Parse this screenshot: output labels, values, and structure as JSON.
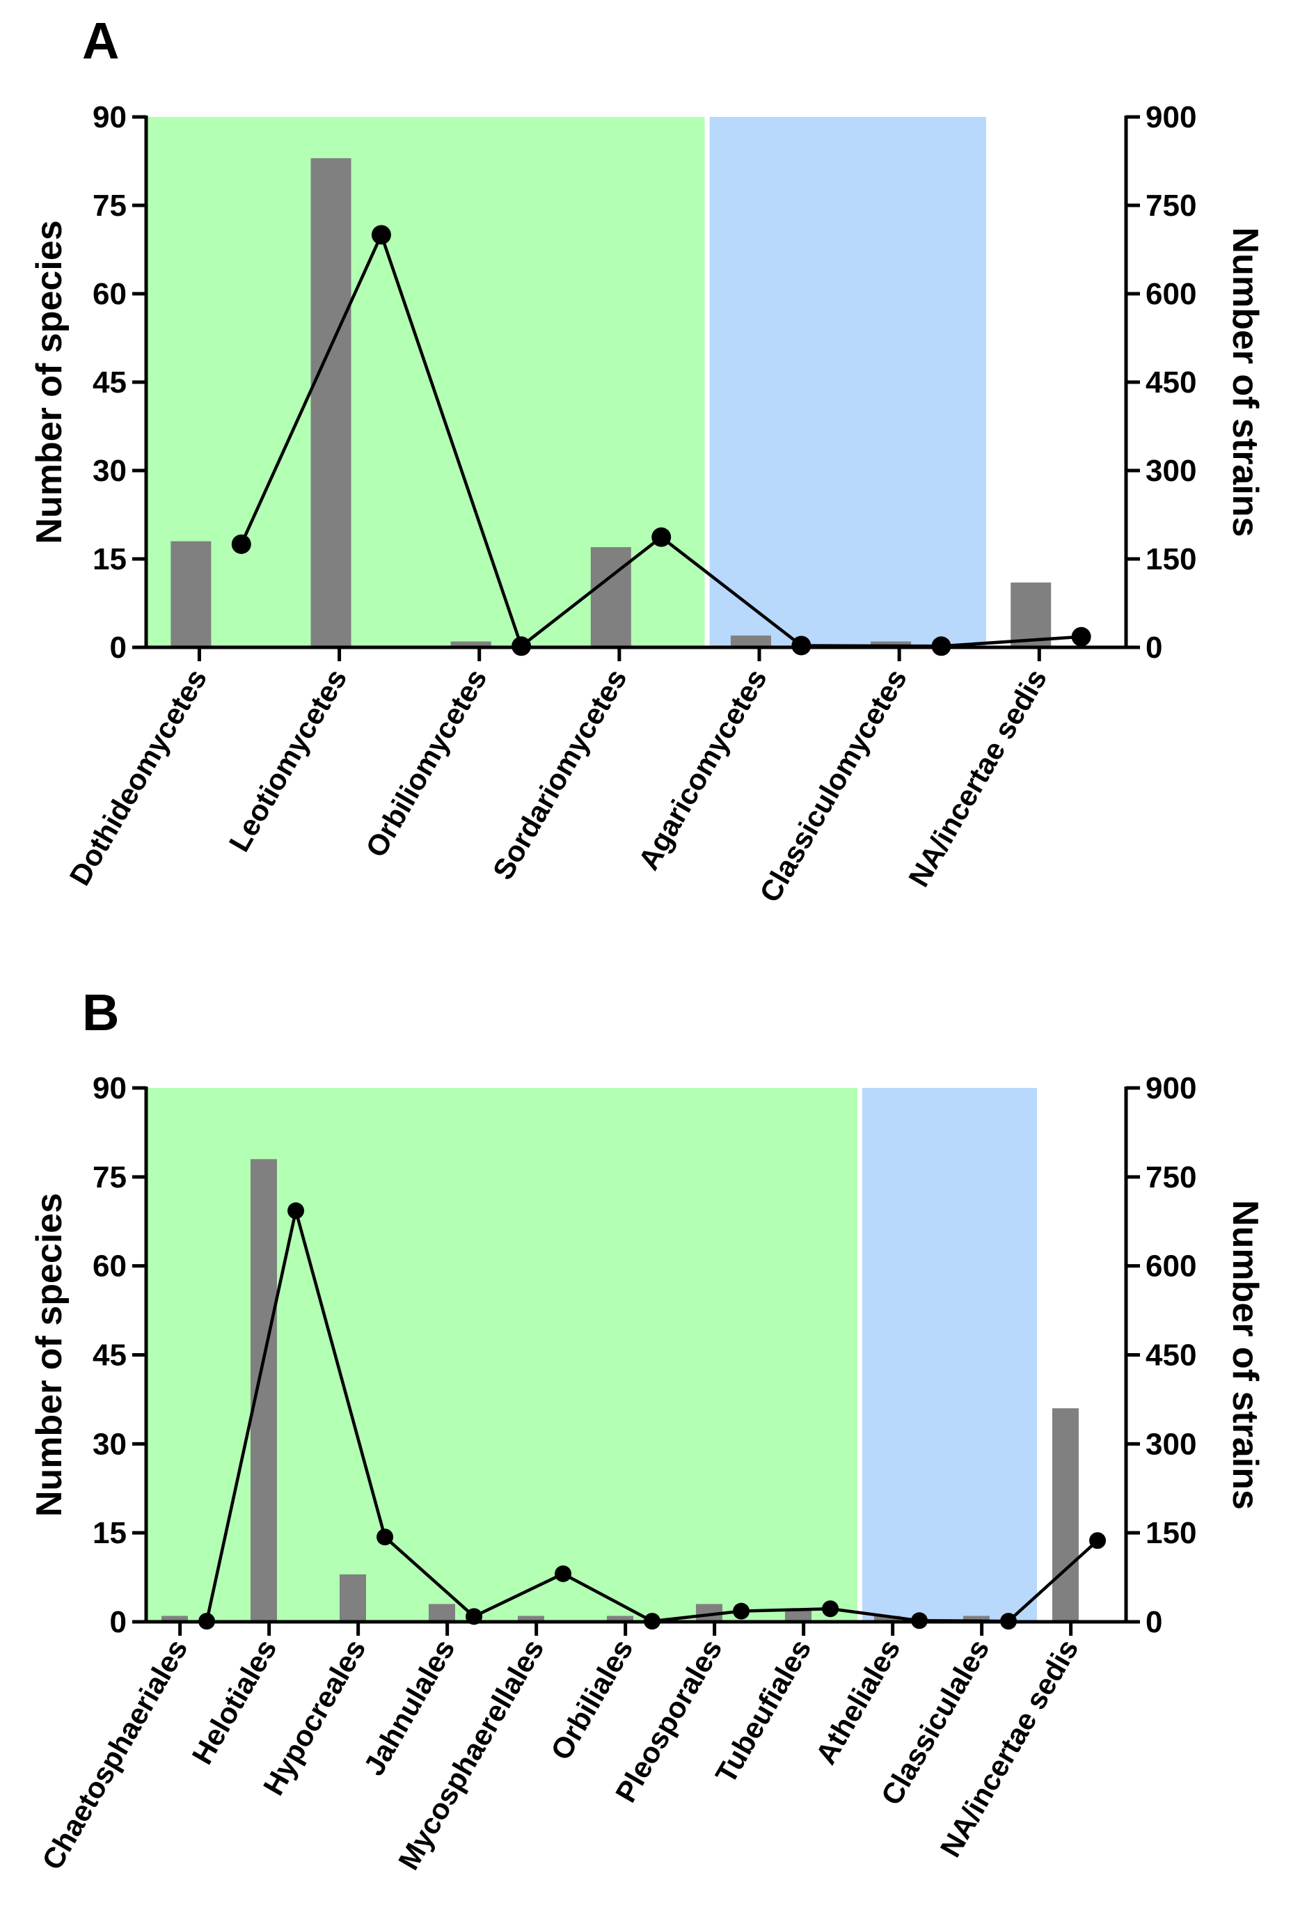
{
  "chart_data": [
    {
      "panel": "A",
      "type": "bar",
      "categories": [
        "Dothideomycetes",
        "Leotiomycetes",
        "Orbiliomycetes",
        "Sordariomycetes",
        "Agaricomycetes",
        "Classiculomycetes",
        "NA/incertae sedis"
      ],
      "series": [
        {
          "name": "Number of species",
          "type": "bar",
          "axis": "left",
          "values": [
            18,
            83,
            1,
            17,
            2,
            1,
            11
          ]
        },
        {
          "name": "Number of strains",
          "type": "line",
          "axis": "right",
          "values": [
            175,
            700,
            2,
            187,
            3,
            2,
            18
          ]
        }
      ],
      "shading": [
        {
          "from_index": 0,
          "to_index": 3,
          "color": "#b3ffb3"
        },
        {
          "from_index": 4,
          "to_index": 5,
          "color": "#b8d8fc"
        }
      ],
      "ylabel": "Number of species",
      "y2label": "Number of strains",
      "ylim": [
        0,
        90
      ],
      "y2lim": [
        0,
        900
      ],
      "yticks": [
        "0",
        "15",
        "30",
        "45",
        "60",
        "75",
        "90"
      ],
      "y2ticks": [
        "0",
        "150",
        "300",
        "450",
        "600",
        "750",
        "900"
      ]
    },
    {
      "panel": "B",
      "type": "bar",
      "categories": [
        "Chaetosphaeriales",
        "Helotiales",
        "Hypocreales",
        "Jahnulales",
        "Mycosphaerellales",
        "Orbiliales",
        "Pleosporales",
        "Tubeufiales",
        "Atheliales",
        "Classiculales",
        "NA/incertae sedis"
      ],
      "series": [
        {
          "name": "Number of species",
          "type": "bar",
          "axis": "left",
          "values": [
            1,
            78,
            8,
            3,
            1,
            1,
            3,
            2,
            1,
            1,
            36
          ]
        },
        {
          "name": "Number of strains",
          "type": "line",
          "axis": "right",
          "values": [
            1,
            693,
            143,
            9,
            81,
            1,
            18,
            22,
            2,
            1,
            137
          ]
        }
      ],
      "shading": [
        {
          "from_index": 0,
          "to_index": 7,
          "color": "#b3ffb3"
        },
        {
          "from_index": 8,
          "to_index": 9,
          "color": "#b8d8fc"
        }
      ],
      "ylabel": "Number of species",
      "y2label": "Number of strains",
      "ylim": [
        0,
        90
      ],
      "y2lim": [
        0,
        900
      ],
      "yticks": [
        "0",
        "15",
        "30",
        "45",
        "60",
        "75",
        "90"
      ],
      "y2ticks": [
        "0",
        "150",
        "300",
        "450",
        "600",
        "750",
        "900"
      ]
    }
  ]
}
